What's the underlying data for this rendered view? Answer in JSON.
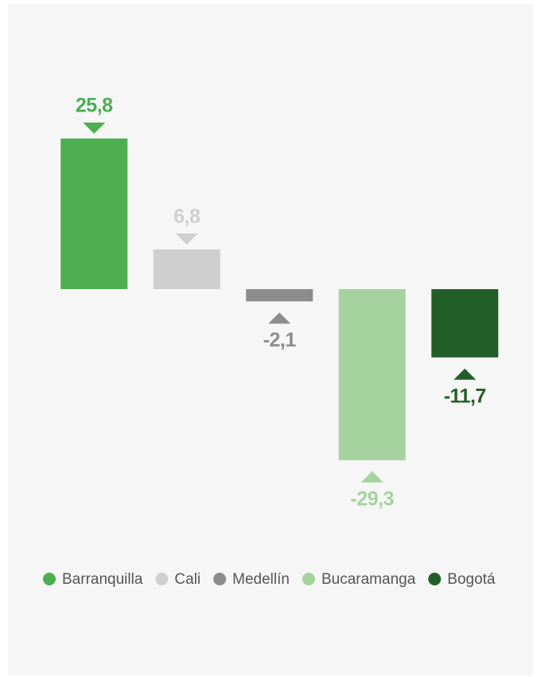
{
  "chart_data": {
    "type": "bar",
    "categories": [
      "Barranquilla",
      "Cali",
      "Medellín",
      "Bucaramanga",
      "Bogotá"
    ],
    "values": [
      25.8,
      6.8,
      -2.1,
      -29.3,
      -11.7
    ],
    "value_labels": [
      "25,8",
      "6,8",
      "-2,1",
      "-29,3",
      "-11,7"
    ],
    "colors": [
      "#4caf50",
      "#d0cfcf",
      "#8c8c8c",
      "#a5d29e",
      "#225f28"
    ],
    "legend": "bottom"
  }
}
